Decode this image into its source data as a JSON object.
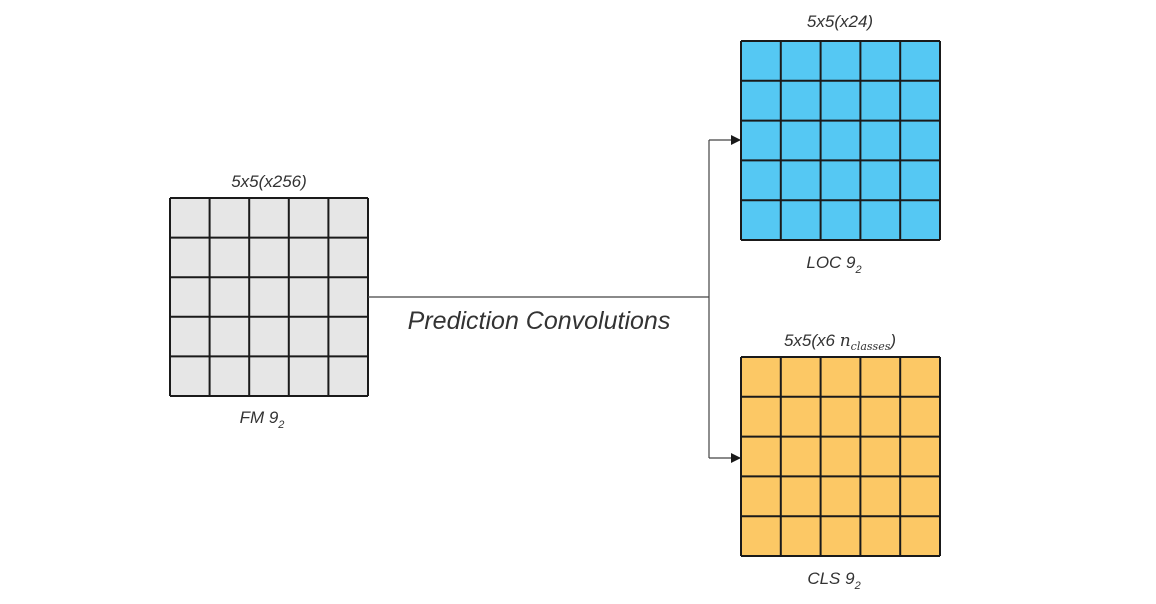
{
  "edge_label": "Prediction Convolutions",
  "input": {
    "name": "FM 9",
    "subscript": "2",
    "dims": "5x5(x256)",
    "rows": 5,
    "cols": 5,
    "color": "#e6e6e6"
  },
  "outputs": [
    {
      "id": "loc",
      "name": "LOC 9",
      "subscript": "2",
      "dims_text": "5x5(x24)",
      "dims_suffix": "",
      "rows": 5,
      "cols": 5,
      "color": "#55c8f3"
    },
    {
      "id": "cls",
      "name": "CLS 9",
      "subscript": "2",
      "dims_text": "5x5(x6 ",
      "dims_var": "n",
      "dims_var_sub": "classes",
      "dims_suffix": ")",
      "rows": 5,
      "cols": 5,
      "color": "#fcc865"
    }
  ]
}
